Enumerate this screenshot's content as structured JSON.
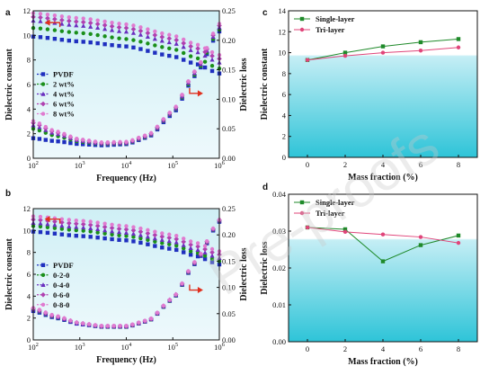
{
  "watermark": "Pre-proofs",
  "colors": {
    "bg_top": "#cfeff5",
    "bg_bottom": "#eaf9fc",
    "bg_bottom_cd": "#2ec4d8",
    "pvdf": "#1f2fbf",
    "s2": "#1a8f1a",
    "s4": "#6a2fc0",
    "s6": "#b040b0",
    "s8": "#e07bd0",
    "single": "#1f8a2a",
    "tri": "#e0457a",
    "arrow": "#e0301e"
  },
  "chart_data": [
    {
      "id": "a",
      "letter": "a",
      "type": "line",
      "xscale": "log",
      "xlim": [
        100,
        1000000
      ],
      "xticks": [
        {
          "v": 100,
          "base": "10",
          "exp": "2"
        },
        {
          "v": 1000,
          "base": "10",
          "exp": "3"
        },
        {
          "v": 10000,
          "base": "10",
          "exp": "4"
        },
        {
          "v": 100000,
          "base": "10",
          "exp": "5"
        },
        {
          "v": 1000000,
          "base": "10",
          "exp": "6"
        }
      ],
      "xlabel": "Frequency (Hz)",
      "ylabel": "Dielectric constant",
      "ylim": [
        0,
        12
      ],
      "yticks": [
        0,
        2,
        4,
        6,
        8,
        10,
        12
      ],
      "y2label": "Dielectric loss",
      "y2lim": [
        0,
        0.25
      ],
      "y2ticks": [
        "0.00",
        "0.05",
        "0.10",
        "0.15",
        "0.20",
        "0.25"
      ],
      "legend": [
        "PVDF",
        "2 wt%",
        "4 wt%",
        "6 wt%",
        "8 wt%"
      ],
      "legend_position": "left-middle",
      "series": [
        {
          "name": "PVDF",
          "color_key": "pvdf",
          "marker": "square",
          "constant": {
            "x": [
              100,
              1000,
              10000,
              100000,
              300000,
              1000000
            ],
            "y": [
              9.9,
              9.5,
              9.1,
              8.3,
              7.7,
              6.9
            ]
          },
          "loss": {
            "x": [
              100,
              300,
              1000,
              3000,
              10000,
              30000,
              100000,
              300000,
              1000000
            ],
            "y": [
              0.034,
              0.029,
              0.024,
              0.022,
              0.024,
              0.036,
              0.075,
              0.14,
              0.215
            ]
          }
        },
        {
          "name": "2 wt%",
          "color_key": "s2",
          "marker": "circle",
          "constant": {
            "x": [
              100,
              1000,
              10000,
              100000,
              300000,
              1000000
            ],
            "y": [
              10.6,
              10.2,
              9.7,
              8.9,
              8.2,
              7.3
            ]
          },
          "loss": {
            "x": [
              100,
              300,
              1000,
              3000,
              10000,
              30000,
              100000,
              300000,
              1000000
            ],
            "y": [
              0.05,
              0.038,
              0.028,
              0.024,
              0.025,
              0.037,
              0.077,
              0.142,
              0.218
            ]
          }
        },
        {
          "name": "4 wt%",
          "color_key": "s4",
          "marker": "triangle",
          "constant": {
            "x": [
              100,
              1000,
              10000,
              100000,
              300000,
              1000000
            ],
            "y": [
              11.2,
              10.8,
              10.3,
              9.4,
              8.7,
              7.8
            ]
          },
          "loss": {
            "x": [
              100,
              300,
              1000,
              3000,
              10000,
              30000,
              100000,
              300000,
              1000000
            ],
            "y": [
              0.056,
              0.042,
              0.03,
              0.025,
              0.026,
              0.038,
              0.078,
              0.145,
              0.222
            ]
          }
        },
        {
          "name": "6 wt%",
          "color_key": "s6",
          "marker": "diamond",
          "constant": {
            "x": [
              100,
              1000,
              10000,
              100000,
              300000,
              1000000
            ],
            "y": [
              11.5,
              11.1,
              10.6,
              9.7,
              9.0,
              8.1
            ]
          },
          "loss": {
            "x": [
              100,
              300,
              1000,
              3000,
              10000,
              30000,
              100000,
              300000,
              1000000
            ],
            "y": [
              0.06,
              0.044,
              0.031,
              0.026,
              0.027,
              0.039,
              0.08,
              0.147,
              0.225
            ]
          }
        },
        {
          "name": "8 wt%",
          "color_key": "s8",
          "marker": "circle",
          "constant": {
            "x": [
              100,
              1000,
              10000,
              100000,
              300000,
              1000000
            ],
            "y": [
              11.8,
              11.4,
              10.9,
              10.0,
              9.3,
              8.4
            ]
          },
          "loss": {
            "x": [
              100,
              300,
              1000,
              3000,
              10000,
              30000,
              100000,
              300000,
              1000000
            ],
            "y": [
              0.063,
              0.046,
              0.032,
              0.027,
              0.028,
              0.04,
              0.081,
              0.148,
              0.228
            ]
          }
        }
      ],
      "arrows": [
        {
          "target": "left",
          "at_x": 200,
          "at_y_frac": 0.08
        },
        {
          "target": "right",
          "at_x": 300000,
          "at_y_frac": 0.56
        }
      ]
    },
    {
      "id": "b",
      "letter": "b",
      "type": "line",
      "xscale": "log",
      "xlim": [
        100,
        1000000
      ],
      "xticks": [
        {
          "v": 100,
          "base": "10",
          "exp": "2"
        },
        {
          "v": 1000,
          "base": "10",
          "exp": "3"
        },
        {
          "v": 10000,
          "base": "10",
          "exp": "4"
        },
        {
          "v": 100000,
          "base": "10",
          "exp": "5"
        },
        {
          "v": 1000000,
          "base": "10",
          "exp": "6"
        }
      ],
      "xlabel": "Frequency (Hz)",
      "ylabel": "Dielectric constant",
      "ylim": [
        0,
        12
      ],
      "yticks": [
        0,
        2,
        4,
        6,
        8,
        10,
        12
      ],
      "y2label": "Dielectric loss",
      "y2lim": [
        0,
        0.25
      ],
      "y2ticks": [
        "0.00",
        "0.05",
        "0.10",
        "0.15",
        "0.20",
        "0.25"
      ],
      "legend": [
        "PVDF",
        "0-2-0",
        "0-4-0",
        "0-6-0",
        "0-8-0"
      ],
      "legend_position": "left-middle",
      "series": [
        {
          "name": "PVDF",
          "color_key": "pvdf",
          "marker": "square",
          "constant": {
            "x": [
              100,
              1000,
              10000,
              100000,
              300000,
              1000000
            ],
            "y": [
              9.9,
              9.5,
              9.1,
              8.3,
              7.7,
              6.9
            ]
          },
          "loss": {
            "x": [
              100,
              300,
              1000,
              3000,
              10000,
              30000,
              100000,
              300000,
              1000000
            ],
            "y": [
              0.055,
              0.042,
              0.03,
              0.025,
              0.025,
              0.036,
              0.078,
              0.145,
              0.225
            ]
          }
        },
        {
          "name": "0-2-0",
          "color_key": "s2",
          "marker": "circle",
          "constant": {
            "x": [
              100,
              1000,
              10000,
              100000,
              300000,
              1000000
            ],
            "y": [
              10.4,
              10.0,
              9.5,
              8.7,
              8.0,
              7.2
            ]
          },
          "loss": {
            "x": [
              100,
              300,
              1000,
              3000,
              10000,
              30000,
              100000,
              300000,
              1000000
            ],
            "y": [
              0.057,
              0.043,
              0.031,
              0.025,
              0.025,
              0.036,
              0.078,
              0.146,
              0.226
            ]
          }
        },
        {
          "name": "0-4-0",
          "color_key": "s4",
          "marker": "triangle",
          "constant": {
            "x": [
              100,
              1000,
              10000,
              100000,
              300000,
              1000000
            ],
            "y": [
              10.7,
              10.3,
              9.8,
              9.0,
              8.3,
              7.5
            ]
          },
          "loss": {
            "x": [
              100,
              300,
              1000,
              3000,
              10000,
              30000,
              100000,
              300000,
              1000000
            ],
            "y": [
              0.058,
              0.044,
              0.031,
              0.026,
              0.026,
              0.037,
              0.079,
              0.147,
              0.227
            ]
          }
        },
        {
          "name": "0-6-0",
          "color_key": "s6",
          "marker": "diamond",
          "constant": {
            "x": [
              100,
              1000,
              10000,
              100000,
              300000,
              1000000
            ],
            "y": [
              11.0,
              10.6,
              10.1,
              9.3,
              8.6,
              7.8
            ]
          },
          "loss": {
            "x": [
              100,
              300,
              1000,
              3000,
              10000,
              30000,
              100000,
              300000,
              1000000
            ],
            "y": [
              0.06,
              0.045,
              0.032,
              0.026,
              0.026,
              0.037,
              0.08,
              0.148,
              0.228
            ]
          }
        },
        {
          "name": "0-8-0",
          "color_key": "s8",
          "marker": "circle",
          "constant": {
            "x": [
              100,
              1000,
              10000,
              100000,
              300000,
              1000000
            ],
            "y": [
              11.3,
              10.9,
              10.4,
              9.6,
              8.9,
              8.1
            ]
          },
          "loss": {
            "x": [
              100,
              300,
              1000,
              3000,
              10000,
              30000,
              100000,
              300000,
              1000000
            ],
            "y": [
              0.061,
              0.046,
              0.032,
              0.027,
              0.027,
              0.038,
              0.08,
              0.149,
              0.229
            ]
          }
        }
      ],
      "arrows": [
        {
          "target": "left",
          "at_x": 200,
          "at_y_frac": 0.08
        },
        {
          "target": "right",
          "at_x": 300000,
          "at_y_frac": 0.62
        }
      ]
    },
    {
      "id": "c",
      "letter": "c",
      "type": "line",
      "xlabel": "Mass fraction (%)",
      "ylabel": "Dielectric constant",
      "xlim": [
        -1,
        9
      ],
      "xticks": [
        0,
        2,
        4,
        6,
        8
      ],
      "ylim": [
        0,
        14
      ],
      "yticks": [
        0,
        2,
        4,
        6,
        8,
        10,
        12,
        14
      ],
      "legend_position": "top-left",
      "series": [
        {
          "name": "Single-layer",
          "color_key": "single",
          "marker": "square",
          "x": [
            0,
            2,
            4,
            6,
            8
          ],
          "y": [
            9.3,
            10.0,
            10.6,
            11.0,
            11.3
          ]
        },
        {
          "name": "Tri-layer",
          "color_key": "tri",
          "marker": "circle",
          "x": [
            0,
            2,
            4,
            6,
            8
          ],
          "y": [
            9.3,
            9.7,
            10.0,
            10.2,
            10.5
          ]
        }
      ]
    },
    {
      "id": "d",
      "letter": "d",
      "type": "line",
      "xlabel": "Mass fraction (%)",
      "ylabel": "Dielectric loss",
      "xlim": [
        -1,
        9
      ],
      "xticks": [
        0,
        2,
        4,
        6,
        8
      ],
      "ylim": [
        0,
        0.04
      ],
      "yticks": [
        "0.00",
        "0.01",
        "0.02",
        "0.03",
        "0.04"
      ],
      "legend_position": "top-left",
      "series": [
        {
          "name": "Single-layer",
          "color_key": "single",
          "marker": "square",
          "x": [
            0,
            2,
            4,
            6,
            8
          ],
          "y": [
            0.031,
            0.0305,
            0.0218,
            0.0262,
            0.0288
          ]
        },
        {
          "name": "Tri-layer",
          "color_key": "tri",
          "marker": "circle",
          "x": [
            0,
            2,
            4,
            6,
            8
          ],
          "y": [
            0.031,
            0.0298,
            0.0291,
            0.0284,
            0.0268
          ]
        }
      ]
    }
  ]
}
